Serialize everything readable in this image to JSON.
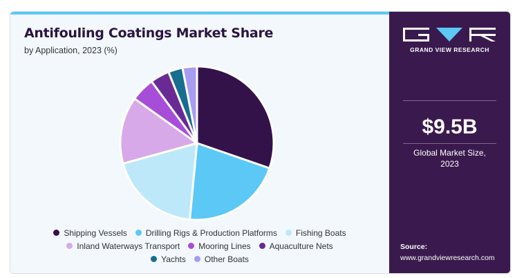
{
  "header": {
    "title": "Antifouling Coatings Market Share",
    "subtitle": "by Application, 2023 (%)"
  },
  "brand": {
    "name": "GRAND VIEW RESEARCH"
  },
  "market": {
    "value": "$9.5B",
    "label_line1": "Global Market Size,",
    "label_line2": "2023"
  },
  "source": {
    "label": "Source:",
    "url": "www.grandviewresearch.com"
  },
  "colors": {
    "accent_bar": "#5bc8f5",
    "panel": "#3a1a4e"
  },
  "chart_data": {
    "type": "pie",
    "categories": [
      "Shipping Vessels",
      "Drilling Rigs & Production Platforms",
      "Fishing Boats",
      "Inland Waterways Transport",
      "Mooring Lines",
      "Aquaculture Nets",
      "Yachts",
      "Other Boats"
    ],
    "values": [
      30,
      21,
      19,
      14,
      5,
      4,
      3,
      3
    ],
    "colors": [
      "#33124a",
      "#5bc8f5",
      "#bde8f9",
      "#d7a9e8",
      "#a74ed8",
      "#6a2a94",
      "#176e8e",
      "#a79cf0"
    ],
    "legend_rows": [
      [
        0,
        1,
        2
      ],
      [
        3,
        4,
        5
      ],
      [
        6,
        7
      ]
    ],
    "legend_position": "bottom"
  }
}
